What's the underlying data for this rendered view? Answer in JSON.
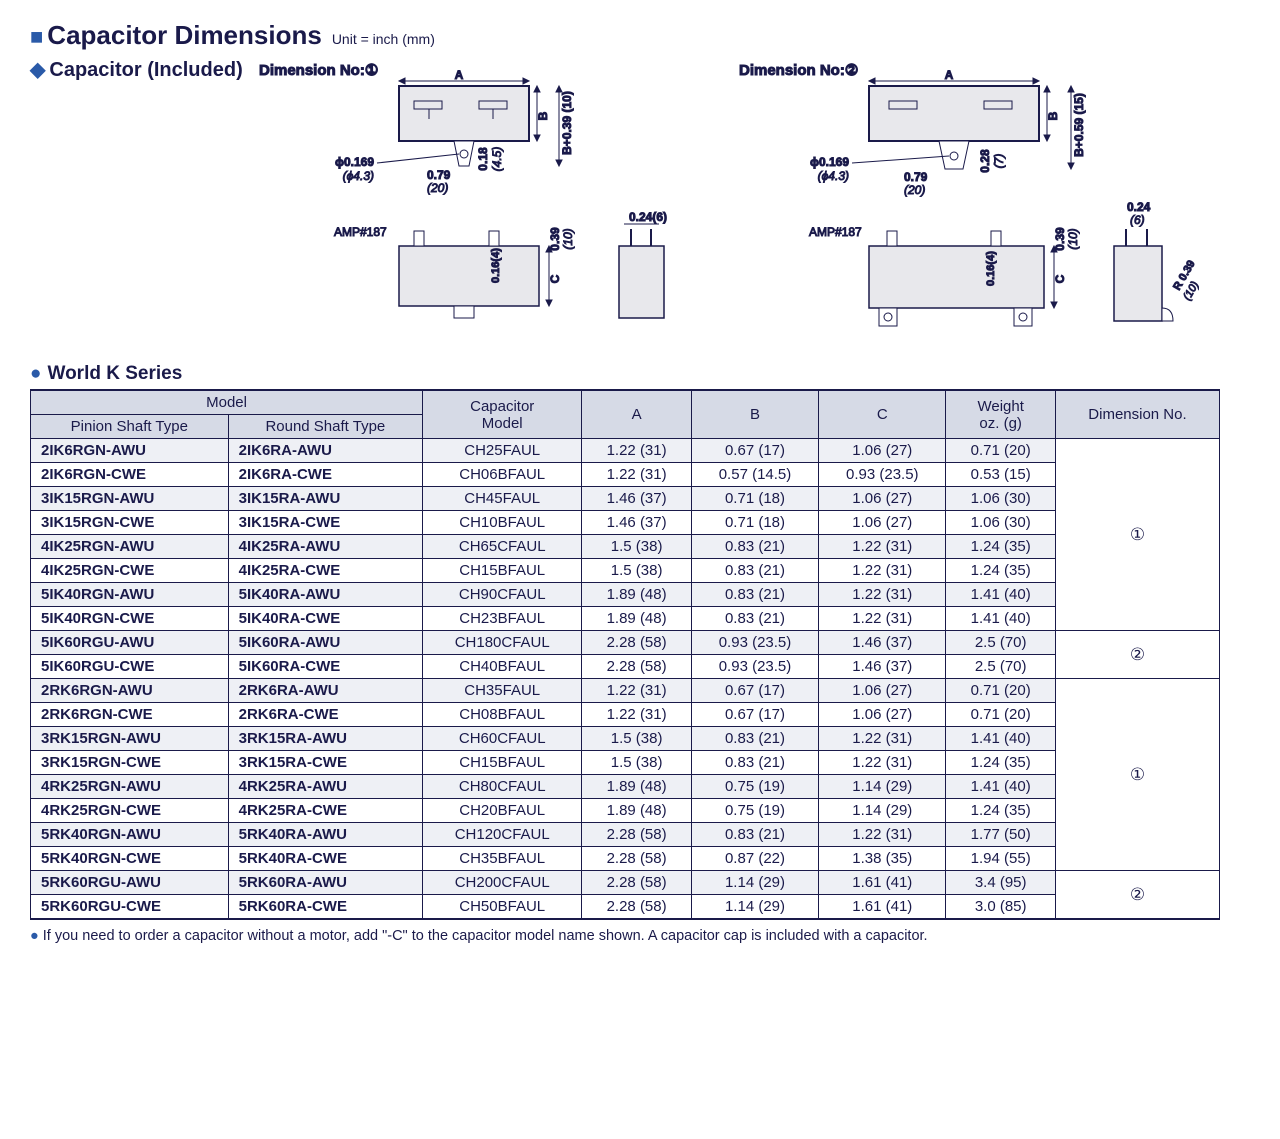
{
  "title": "Capacitor Dimensions",
  "unit": "Unit = inch (mm)",
  "sub1": "Capacitor (Included)",
  "dim_label_1": "Dimension No:①",
  "dim_label_2": "Dimension No:②",
  "series_title": "World K Series",
  "diagram": {
    "labels": {
      "A": "A",
      "B": "B",
      "C": "C",
      "phi": "ϕ0.169",
      "phi_mm": "(ϕ4.3)",
      "d079": "0.79",
      "d079mm": "(20)",
      "d018": "0.18",
      "d018mm": "(4.5)",
      "d028": "0.28",
      "d028mm": "(7)",
      "bplus1": "B+0.39 (10)",
      "bplus2": "B+0.59 (15)",
      "amp": "AMP#187",
      "d039": "0.39",
      "d039mm": "(10)",
      "d016": "0.16(4)",
      "d024": "0.24(6)",
      "d024b": "0.24",
      "d024bmm": "(6)",
      "r039": "R 0.39",
      "r039mm": "(10)"
    }
  },
  "headers": {
    "model": "Model",
    "pinion": "Pinion Shaft Type",
    "round": "Round Shaft Type",
    "cap": "Capacitor\nModel",
    "A": "A",
    "B": "B",
    "C": "C",
    "weight": "Weight\noz. (g)",
    "dimno": "Dimension No."
  },
  "groups": [
    {
      "dimno": "①",
      "rows": [
        {
          "p": "2IK6RGN-AWU",
          "r": "2IK6RA-AWU",
          "c": "CH25FAUL",
          "a": "1.22 (31)",
          "b": "0.67 (17)",
          "cc": "1.06 (27)",
          "w": "0.71 (20)"
        },
        {
          "p": "2IK6RGN-CWE",
          "r": "2IK6RA-CWE",
          "c": "CH06BFAUL",
          "a": "1.22 (31)",
          "b": "0.57 (14.5)",
          "cc": "0.93 (23.5)",
          "w": "0.53 (15)"
        },
        {
          "p": "3IK15RGN-AWU",
          "r": "3IK15RA-AWU",
          "c": "CH45FAUL",
          "a": "1.46 (37)",
          "b": "0.71 (18)",
          "cc": "1.06 (27)",
          "w": "1.06 (30)"
        },
        {
          "p": "3IK15RGN-CWE",
          "r": "3IK15RA-CWE",
          "c": "CH10BFAUL",
          "a": "1.46 (37)",
          "b": "0.71 (18)",
          "cc": "1.06 (27)",
          "w": "1.06 (30)"
        },
        {
          "p": "4IK25RGN-AWU",
          "r": "4IK25RA-AWU",
          "c": "CH65CFAUL",
          "a": "1.5 (38)",
          "b": "0.83 (21)",
          "cc": "1.22 (31)",
          "w": "1.24 (35)"
        },
        {
          "p": "4IK25RGN-CWE",
          "r": "4IK25RA-CWE",
          "c": "CH15BFAUL",
          "a": "1.5 (38)",
          "b": "0.83 (21)",
          "cc": "1.22 (31)",
          "w": "1.24 (35)"
        },
        {
          "p": "5IK40RGN-AWU",
          "r": "5IK40RA-AWU",
          "c": "CH90CFAUL",
          "a": "1.89 (48)",
          "b": "0.83 (21)",
          "cc": "1.22 (31)",
          "w": "1.41 (40)"
        },
        {
          "p": "5IK40RGN-CWE",
          "r": "5IK40RA-CWE",
          "c": "CH23BFAUL",
          "a": "1.89 (48)",
          "b": "0.83 (21)",
          "cc": "1.22 (31)",
          "w": "1.41 (40)"
        }
      ]
    },
    {
      "dimno": "②",
      "rows": [
        {
          "p": "5IK60RGU-AWU",
          "r": "5IK60RA-AWU",
          "c": "CH180CFAUL",
          "a": "2.28 (58)",
          "b": "0.93 (23.5)",
          "cc": "1.46 (37)",
          "w": "2.5 (70)"
        },
        {
          "p": "5IK60RGU-CWE",
          "r": "5IK60RA-CWE",
          "c": "CH40BFAUL",
          "a": "2.28 (58)",
          "b": "0.93 (23.5)",
          "cc": "1.46 (37)",
          "w": "2.5 (70)"
        }
      ]
    },
    {
      "dimno": "①",
      "rows": [
        {
          "p": "2RK6RGN-AWU",
          "r": "2RK6RA-AWU",
          "c": "CH35FAUL",
          "a": "1.22 (31)",
          "b": "0.67 (17)",
          "cc": "1.06 (27)",
          "w": "0.71 (20)"
        },
        {
          "p": "2RK6RGN-CWE",
          "r": "2RK6RA-CWE",
          "c": "CH08BFAUL",
          "a": "1.22 (31)",
          "b": "0.67 (17)",
          "cc": "1.06 (27)",
          "w": "0.71 (20)"
        },
        {
          "p": "3RK15RGN-AWU",
          "r": "3RK15RA-AWU",
          "c": "CH60CFAUL",
          "a": "1.5 (38)",
          "b": "0.83 (21)",
          "cc": "1.22 (31)",
          "w": "1.41 (40)"
        },
        {
          "p": "3RK15RGN-CWE",
          "r": "3RK15RA-CWE",
          "c": "CH15BFAUL",
          "a": "1.5 (38)",
          "b": "0.83 (21)",
          "cc": "1.22 (31)",
          "w": "1.24 (35)"
        },
        {
          "p": "4RK25RGN-AWU",
          "r": "4RK25RA-AWU",
          "c": "CH80CFAUL",
          "a": "1.89 (48)",
          "b": "0.75 (19)",
          "cc": "1.14 (29)",
          "w": "1.41 (40)"
        },
        {
          "p": "4RK25RGN-CWE",
          "r": "4RK25RA-CWE",
          "c": "CH20BFAUL",
          "a": "1.89 (48)",
          "b": "0.75 (19)",
          "cc": "1.14 (29)",
          "w": "1.24 (35)"
        },
        {
          "p": "5RK40RGN-AWU",
          "r": "5RK40RA-AWU",
          "c": "CH120CFAUL",
          "a": "2.28 (58)",
          "b": "0.83 (21)",
          "cc": "1.22 (31)",
          "w": "1.77 (50)"
        },
        {
          "p": "5RK40RGN-CWE",
          "r": "5RK40RA-CWE",
          "c": "CH35BFAUL",
          "a": "2.28 (58)",
          "b": "0.87 (22)",
          "cc": "1.38 (35)",
          "w": "1.94 (55)"
        }
      ]
    },
    {
      "dimno": "②",
      "rows": [
        {
          "p": "5RK60RGU-AWU",
          "r": "5RK60RA-AWU",
          "c": "CH200CFAUL",
          "a": "2.28 (58)",
          "b": "1.14 (29)",
          "cc": "1.61 (41)",
          "w": "3.4 (95)"
        },
        {
          "p": "5RK60RGU-CWE",
          "r": "5RK60RA-CWE",
          "c": "CH50BFAUL",
          "a": "2.28 (58)",
          "b": "1.14 (29)",
          "cc": "1.61 (41)",
          "w": "3.0 (85)"
        }
      ]
    }
  ],
  "note": "If you need to order a capacitor without a motor, add \"-C\" to the capacitor model name shown. A capacitor cap is included with a capacitor."
}
